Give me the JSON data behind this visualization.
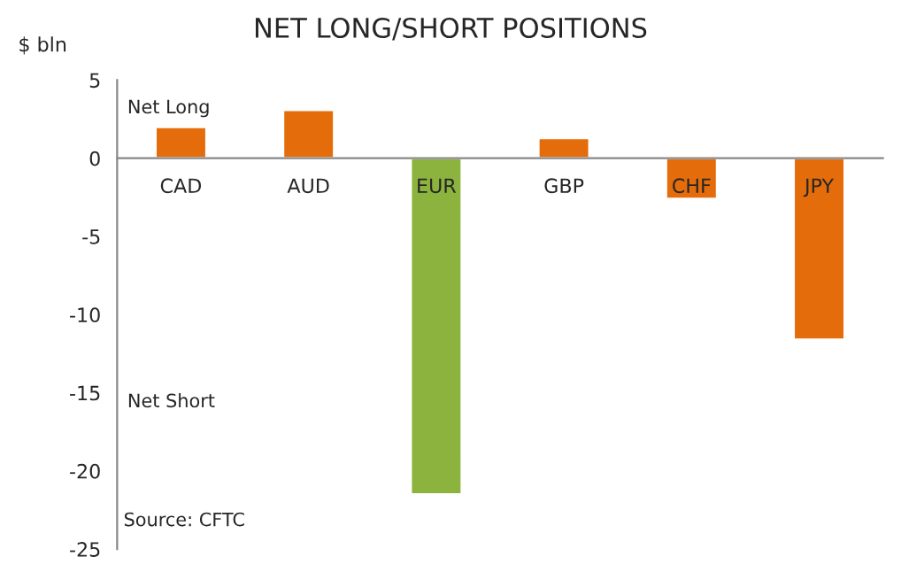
{
  "chart_data": {
    "type": "bar",
    "title": "NET LONG/SHORT POSITIONS",
    "ylabel": "$ bln",
    "categories": [
      "CAD",
      "AUD",
      "EUR",
      "GBP",
      "CHF",
      "JPY"
    ],
    "values": [
      2,
      3.1,
      -21.5,
      1.3,
      -2.6,
      -11.6
    ],
    "colors": [
      "#e46c0a",
      "#e46c0a",
      "#8db33f",
      "#e46c0a",
      "#e46c0a",
      "#e46c0a"
    ],
    "ylim": [
      -25,
      5
    ],
    "yticks": [
      -25,
      -20,
      -15,
      -10,
      -5,
      0,
      5
    ],
    "grid": false,
    "legend": false,
    "annotations": [
      "Net Long",
      "Net Short",
      "Source: CFTC"
    ]
  }
}
